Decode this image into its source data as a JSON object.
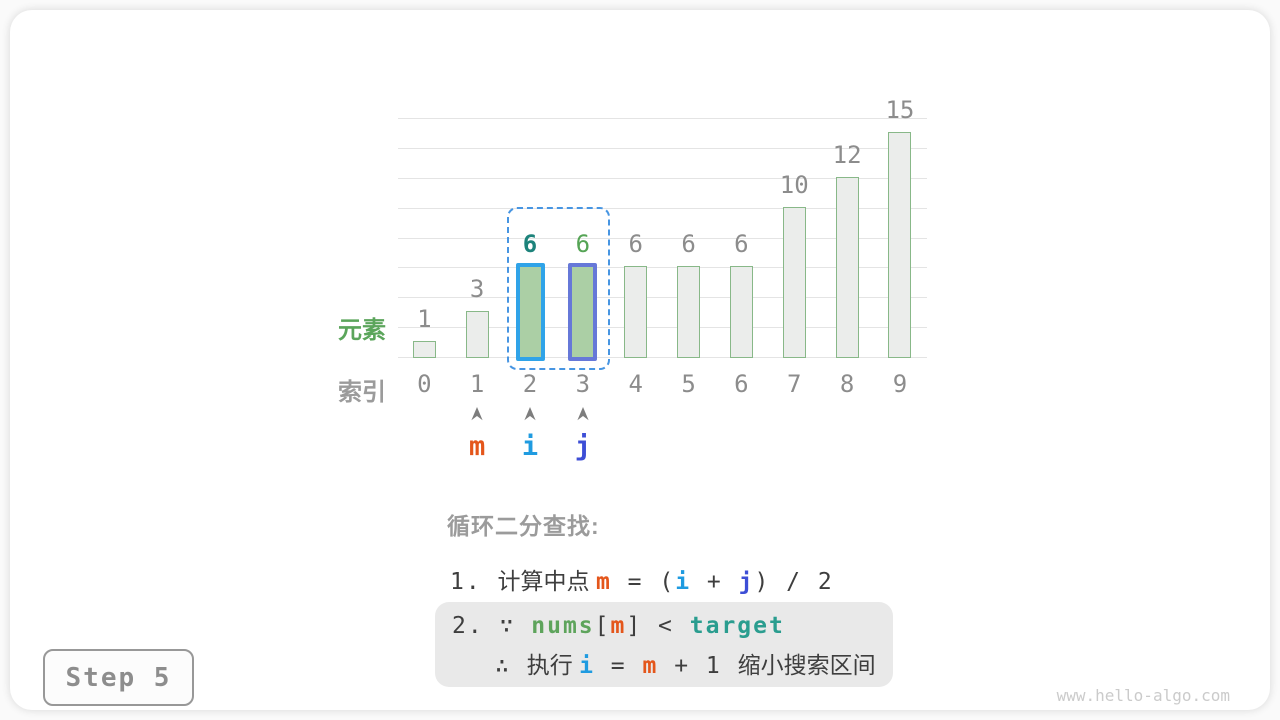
{
  "page": {
    "step_label": "Step 5",
    "watermark": "www.hello-algo.com"
  },
  "chart_data": {
    "type": "bar",
    "title": "",
    "categories": [
      "0",
      "1",
      "2",
      "3",
      "4",
      "5",
      "6",
      "7",
      "8",
      "9"
    ],
    "values": [
      1,
      3,
      6,
      6,
      6,
      6,
      6,
      10,
      12,
      15
    ],
    "xlabel": "索引",
    "ylabel": "元素",
    "ylim": [
      0,
      16
    ],
    "ytick_step": 2,
    "grid": true,
    "legend": "none",
    "colors": {
      "bar_fill": "#ebedeb",
      "bar_stroke": "#88b888",
      "grid": "#e4e4e4",
      "label_gray": "#8c8c8c",
      "element_label_green": "#5ba55b",
      "index_label_gray": "#9b9b9b"
    },
    "highlights": [
      {
        "index": 2,
        "fill": "#abcfa5",
        "stroke": "#2fa3e8",
        "label_color": "#1d837b",
        "label_bold": true
      },
      {
        "index": 3,
        "fill": "#abcfa5",
        "stroke": "#6678d8",
        "label_color": "#55a455",
        "label_bold": false
      }
    ],
    "selection_box": {
      "indices": [
        2,
        3
      ],
      "color": "#4795e2"
    },
    "pointers": [
      {
        "label": "m",
        "index": 1,
        "color": "#e4561b"
      },
      {
        "label": "i",
        "index": 2,
        "color": "#1f9be0"
      },
      {
        "label": "j",
        "index": 3,
        "color": "#3d4ed6"
      }
    ]
  },
  "annotation": {
    "heading": "循环二分查找:",
    "line1_parts": [
      {
        "t": "1. ",
        "s": "code"
      },
      {
        "t": "计算中点 ",
        "s": "dark"
      },
      {
        "t": "m",
        "s": "m"
      },
      {
        "t": " = (",
        "s": "code"
      },
      {
        "t": "i",
        "s": "i"
      },
      {
        "t": " + ",
        "s": "code"
      },
      {
        "t": "j",
        "s": "j"
      },
      {
        "t": ") / 2",
        "s": "code"
      }
    ],
    "box_line1_parts": [
      {
        "t": "2. ",
        "s": "code"
      },
      {
        "t": "∵ ",
        "s": "code"
      },
      {
        "t": "nums",
        "s": "nums"
      },
      {
        "t": "[",
        "s": "code"
      },
      {
        "t": "m",
        "s": "m"
      },
      {
        "t": "] < ",
        "s": "code"
      },
      {
        "t": "target",
        "s": "target"
      }
    ],
    "box_line2_parts": [
      {
        "t": "∴ ",
        "s": "code"
      },
      {
        "t": "执行 ",
        "s": "dark"
      },
      {
        "t": "i",
        "s": "i"
      },
      {
        "t": " = ",
        "s": "code"
      },
      {
        "t": "m",
        "s": "m"
      },
      {
        "t": " + 1 ",
        "s": "code"
      },
      {
        "t": "缩小搜索区间",
        "s": "dark"
      }
    ]
  }
}
